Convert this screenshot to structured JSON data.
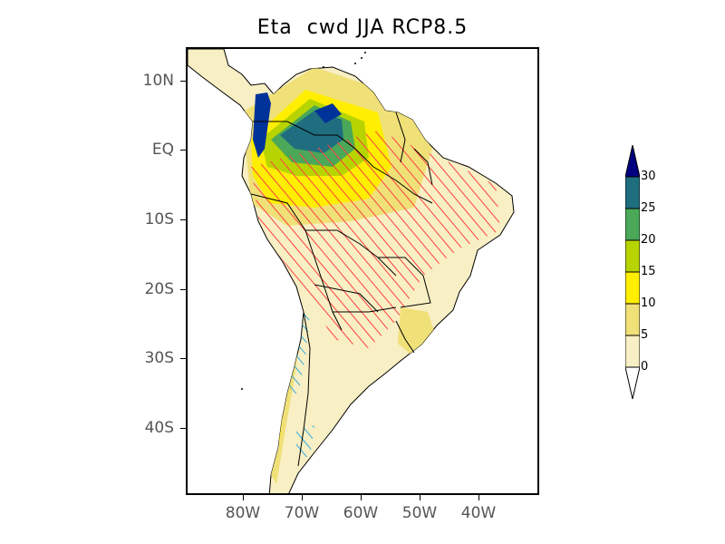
{
  "title": "Eta  cwd JJA RCP8.5",
  "axes": {
    "lat_ticks": [
      "10N",
      "EQ",
      "10S",
      "20S",
      "30S",
      "40S"
    ],
    "lon_ticks": [
      "80W",
      "70W",
      "60W",
      "50W",
      "40W"
    ]
  },
  "colorbar": {
    "labels": [
      "30",
      "25",
      "20",
      "15",
      "10",
      "5",
      "0"
    ],
    "colors": [
      "#003399",
      "#1f6e80",
      "#4aa858",
      "#b8d400",
      "#ffee00",
      "#f0e078",
      "#f8efc4",
      "#ffffff"
    ],
    "top_color": "#000080"
  },
  "colors": {
    "ocean": "#ffffff",
    "land": "#f8efc4",
    "hatch_positive": "#ff4040",
    "hatch_negative": "#33aadd"
  }
}
